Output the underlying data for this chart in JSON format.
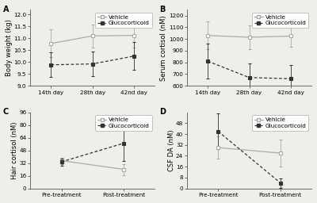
{
  "panel_A": {
    "label": "A",
    "ylabel": "Body weight (kg)",
    "xtick_labels": [
      "14th day",
      "28th day",
      "42nd day"
    ],
    "vehicle_mean": [
      10.78,
      11.1,
      11.12
    ],
    "vehicle_err": [
      0.58,
      0.48,
      0.52
    ],
    "gluco_mean": [
      9.88,
      9.92,
      10.25
    ],
    "gluco_err": [
      0.52,
      0.52,
      0.58
    ],
    "ylim": [
      9.0,
      12.2
    ],
    "yticks": [
      9.0,
      9.5,
      10.0,
      10.5,
      11.0,
      11.5,
      12.0
    ]
  },
  "panel_B": {
    "label": "B",
    "ylabel": "Serum cortisol (nM)",
    "xtick_labels": [
      "14th day",
      "28th day",
      "42nd day"
    ],
    "vehicle_mean": [
      1030,
      1015,
      1025
    ],
    "vehicle_err": [
      120,
      100,
      95
    ],
    "gluco_mean": [
      810,
      670,
      660
    ],
    "gluco_err": [
      150,
      120,
      115
    ],
    "ylim": [
      600,
      1250
    ],
    "yticks": [
      600,
      700,
      800,
      900,
      1000,
      1100,
      1200
    ]
  },
  "panel_C": {
    "label": "C",
    "ylabel": "Hair cortisol (nM)",
    "xtick_labels": [
      "Pre-treatment",
      "Post-treatment"
    ],
    "vehicle_mean": [
      35.0,
      24.0
    ],
    "vehicle_err": [
      4.0,
      7.0
    ],
    "gluco_mean": [
      33.5,
      57.0
    ],
    "gluco_err": [
      4.5,
      22.0
    ],
    "ylim": [
      0,
      96
    ],
    "yticks": [
      0,
      16,
      32,
      48,
      64,
      80,
      96
    ]
  },
  "panel_D": {
    "label": "D",
    "ylabel": "CSF DA (nM)",
    "xtick_labels": [
      "Pre-treatment",
      "Post-treatment"
    ],
    "vehicle_mean": [
      30.0,
      26.0
    ],
    "vehicle_err": [
      8.0,
      10.0
    ],
    "gluco_mean": [
      42.0,
      4.0
    ],
    "gluco_err": [
      13.0,
      3.5
    ],
    "ylim": [
      0,
      56
    ],
    "yticks": [
      0,
      8,
      16,
      24,
      32,
      40,
      48
    ]
  },
  "vehicle_color": "#aaaaaa",
  "gluco_color": "#333333",
  "bg_color": "#f0eeeb",
  "legend_fontsize": 5.2,
  "label_fontsize": 6.0,
  "tick_fontsize": 5.2,
  "panel_label_fontsize": 7,
  "linewidth": 0.9,
  "markersize": 3.5,
  "capsize": 1.5,
  "elinewidth": 0.6
}
